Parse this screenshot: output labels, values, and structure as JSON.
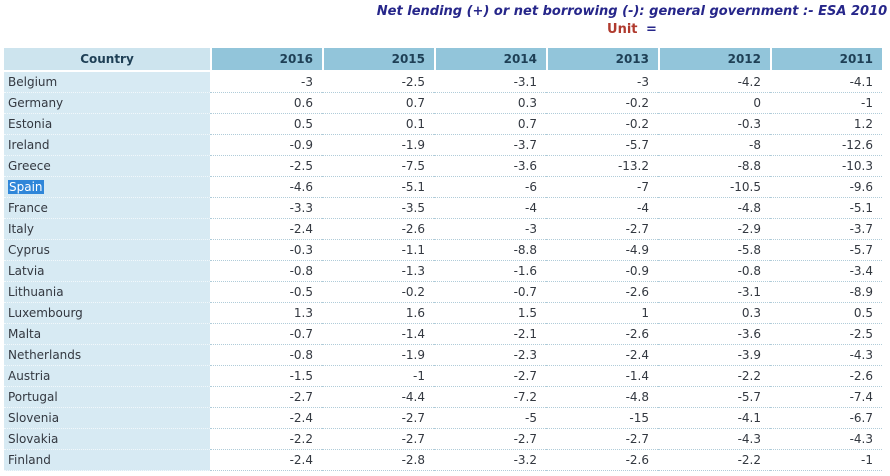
{
  "header": {
    "title": "Net lending (+) or net borrowing (-): general government :- ESA 2010",
    "unit_label": "Unit",
    "unit_equals": "="
  },
  "table": {
    "country_header": "Country",
    "year_headers": [
      "2016",
      "2015",
      "2014",
      "2013",
      "2012",
      "2011"
    ],
    "selected_country": "Spain",
    "rows": [
      {
        "country": "Belgium",
        "selected": false,
        "values": [
          "-3",
          "-2.5",
          "-3.1",
          "-3",
          "-4.2",
          "-4.1"
        ]
      },
      {
        "country": "Germany",
        "selected": false,
        "values": [
          "0.6",
          "0.7",
          "0.3",
          "-0.2",
          "0",
          "-1"
        ]
      },
      {
        "country": "Estonia",
        "selected": false,
        "values": [
          "0.5",
          "0.1",
          "0.7",
          "-0.2",
          "-0.3",
          "1.2"
        ]
      },
      {
        "country": "Ireland",
        "selected": false,
        "values": [
          "-0.9",
          "-1.9",
          "-3.7",
          "-5.7",
          "-8",
          "-12.6"
        ]
      },
      {
        "country": "Greece",
        "selected": false,
        "values": [
          "-2.5",
          "-7.5",
          "-3.6",
          "-13.2",
          "-8.8",
          "-10.3"
        ]
      },
      {
        "country": "Spain",
        "selected": true,
        "values": [
          "-4.6",
          "-5.1",
          "-6",
          "-7",
          "-10.5",
          "-9.6"
        ]
      },
      {
        "country": "France",
        "selected": false,
        "values": [
          "-3.3",
          "-3.5",
          "-4",
          "-4",
          "-4.8",
          "-5.1"
        ]
      },
      {
        "country": "Italy",
        "selected": false,
        "values": [
          "-2.4",
          "-2.6",
          "-3",
          "-2.7",
          "-2.9",
          "-3.7"
        ]
      },
      {
        "country": "Cyprus",
        "selected": false,
        "values": [
          "-0.3",
          "-1.1",
          "-8.8",
          "-4.9",
          "-5.8",
          "-5.7"
        ]
      },
      {
        "country": "Latvia",
        "selected": false,
        "values": [
          "-0.8",
          "-1.3",
          "-1.6",
          "-0.9",
          "-0.8",
          "-3.4"
        ]
      },
      {
        "country": "Lithuania",
        "selected": false,
        "values": [
          "-0.5",
          "-0.2",
          "-0.7",
          "-2.6",
          "-3.1",
          "-8.9"
        ]
      },
      {
        "country": "Luxembourg",
        "selected": false,
        "values": [
          "1.3",
          "1.6",
          "1.5",
          "1",
          "0.3",
          "0.5"
        ]
      },
      {
        "country": "Malta",
        "selected": false,
        "values": [
          "-0.7",
          "-1.4",
          "-2.1",
          "-2.6",
          "-3.6",
          "-2.5"
        ]
      },
      {
        "country": "Netherlands",
        "selected": false,
        "values": [
          "-0.8",
          "-1.9",
          "-2.3",
          "-2.4",
          "-3.9",
          "-4.3"
        ]
      },
      {
        "country": "Austria",
        "selected": false,
        "values": [
          "-1.5",
          "-1",
          "-2.7",
          "-1.4",
          "-2.2",
          "-2.6"
        ]
      },
      {
        "country": "Portugal",
        "selected": false,
        "values": [
          "-2.7",
          "-4.4",
          "-7.2",
          "-4.8",
          "-5.7",
          "-7.4"
        ]
      },
      {
        "country": "Slovenia",
        "selected": false,
        "values": [
          "-2.4",
          "-2.7",
          "-5",
          "-15",
          "-4.1",
          "-6.7"
        ]
      },
      {
        "country": "Slovakia",
        "selected": false,
        "values": [
          "-2.2",
          "-2.7",
          "-2.7",
          "-2.7",
          "-4.3",
          "-4.3"
        ]
      },
      {
        "country": "Finland",
        "selected": false,
        "values": [
          "-2.4",
          "-2.8",
          "-3.2",
          "-2.6",
          "-2.2",
          "-1"
        ]
      }
    ]
  },
  "colors": {
    "title_text": "#26268a",
    "unit_text": "#b03a2e",
    "year_header_bg": "#92c5da",
    "country_header_bg": "#cde4ee",
    "country_cell_bg": "#d7eaf3",
    "header_text": "#1e3f55",
    "cell_text": "#333840",
    "selection_bg": "#2f86d9",
    "selection_text": "#ffffff",
    "dotted_separator": "#b0ccd9"
  }
}
